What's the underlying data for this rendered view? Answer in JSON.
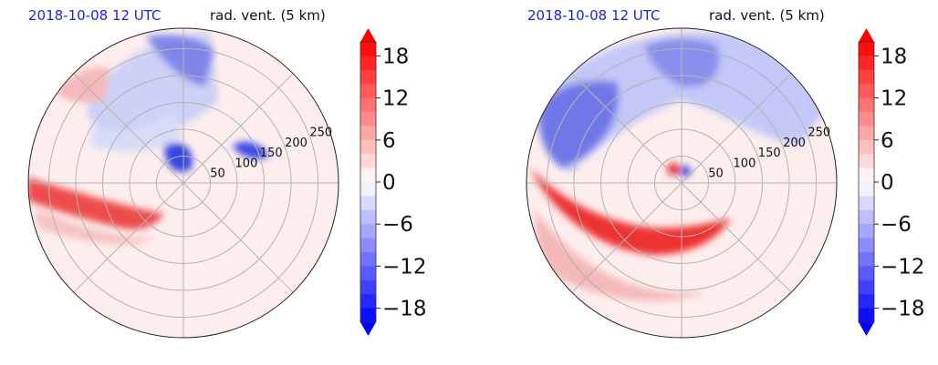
{
  "chart_data": [
    {
      "type": "heatmap",
      "title_left": "2018-10-08 12 UTC",
      "title_right": "rad. vent. (5 km)",
      "radial_ticks": [
        "50",
        "100",
        "150",
        "200",
        "250"
      ],
      "radial_values": [
        50,
        100,
        150,
        200,
        250
      ],
      "colorbar": {
        "ticks": [
          "18",
          "12",
          "6",
          "0",
          "−6",
          "−12",
          "−18"
        ],
        "tick_values": [
          18,
          12,
          6,
          0,
          -6,
          -12,
          -18
        ],
        "range": [
          -20,
          20
        ],
        "extend": "both"
      }
    },
    {
      "type": "heatmap",
      "title_left": "2018-10-08 12 UTC",
      "title_right": "rad. vent. (5 km)",
      "radial_ticks": [
        "50",
        "100",
        "150",
        "200",
        "250"
      ],
      "radial_values": [
        50,
        100,
        150,
        200,
        250
      ],
      "colorbar": {
        "ticks": [
          "18",
          "12",
          "6",
          "0",
          "−6",
          "−12",
          "−18"
        ],
        "tick_values": [
          18,
          12,
          6,
          0,
          -6,
          -12,
          -18
        ],
        "range": [
          -20,
          20
        ],
        "extend": "both"
      }
    }
  ]
}
